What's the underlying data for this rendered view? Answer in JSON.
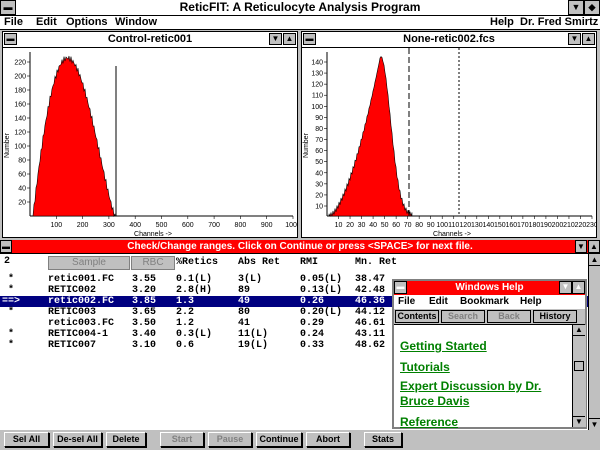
{
  "app": {
    "title": "ReticFIT: A Reticulocyte Analysis Program"
  },
  "menubar": {
    "file": "File",
    "edit": "Edit",
    "options": "Options",
    "window": "Window",
    "help": "Help",
    "user": "Dr. Fred Smirtz"
  },
  "window_left": {
    "title": "Control-retic001",
    "ylabel": "Number",
    "xlabel": "Channels ->",
    "xticks": [
      "100",
      "200",
      "300",
      "400",
      "500",
      "600",
      "700",
      "800",
      "900",
      "1000"
    ],
    "yticks": [
      "220",
      "200",
      "180",
      "160",
      "140",
      "120",
      "100",
      "80",
      "60",
      "40",
      "20"
    ]
  },
  "window_right": {
    "title": "None-retic002.fcs",
    "ylabel": "Number",
    "xlabel": "Channels ->",
    "xticks": [
      "10",
      "20",
      "30",
      "40",
      "50",
      "60",
      "70",
      "80",
      "90",
      "100",
      "110",
      "120",
      "130",
      "140",
      "150",
      "160",
      "170",
      "180",
      "190",
      "200",
      "210",
      "220",
      "230"
    ],
    "yticks": [
      "140",
      "130",
      "120",
      "110",
      "100",
      "90",
      "80",
      "70",
      "60",
      "50",
      "40",
      "30",
      "20",
      "10"
    ]
  },
  "status_message": "Check/Change ranges.  Click on Continue or press <SPACE> for next file.",
  "list": {
    "count": "2",
    "sample_btn": "Sample",
    "rbc_btn": "RBC",
    "headers": {
      "retics": "%Retics",
      "absret": "Abs Ret",
      "rmi": "RMI",
      "mnret": "Mn. Ret"
    },
    "rows": [
      {
        "marker": " *",
        "file": "retic001.FC",
        "rbc": "3.55",
        "retics": "0.1(L)",
        "absret": "3(L)",
        "rmi": "0.05(L)",
        "mnret": "38.47"
      },
      {
        "marker": " *",
        "file": "RETIC002",
        "rbc": "3.20",
        "retics": "2.8(H)",
        "absret": "89",
        "rmi": "0.13(L)",
        "mnret": "42.48"
      },
      {
        "marker": "==>",
        "file": "retic002.FC",
        "rbc": "3.85",
        "retics": "1.3",
        "absret": "49",
        "rmi": "0.26",
        "mnret": "46.36"
      },
      {
        "marker": " *",
        "file": "RETIC003",
        "rbc": "3.65",
        "retics": "2.2",
        "absret": "80",
        "rmi": "0.20(L)",
        "mnret": "44.12"
      },
      {
        "marker": "",
        "file": "retic003.FC",
        "rbc": "3.50",
        "retics": "1.2",
        "absret": "41",
        "rmi": "0.29",
        "mnret": "46.61"
      },
      {
        "marker": " *",
        "file": "RETIC004-1",
        "rbc": "3.40",
        "retics": "0.3(L)",
        "absret": "11(L)",
        "rmi": "0.24",
        "mnret": "43.11"
      },
      {
        "marker": " *",
        "file": "RETIC007",
        "rbc": "3.10",
        "retics": "0.6",
        "absret": "19(L)",
        "rmi": "0.33",
        "mnret": "48.62"
      }
    ]
  },
  "buttons": {
    "sel_all": "Sel All",
    "desel_all": "De-sel All",
    "delete": "Delete",
    "start": "Start",
    "pause": "Pause",
    "continue": "Continue",
    "abort": "Abort",
    "stats": "Stats"
  },
  "help_window": {
    "title": "Windows Help",
    "menu": {
      "file": "File",
      "edit": "Edit",
      "bookmark": "Bookmark",
      "help": "Help"
    },
    "toolbar": {
      "contents": "Contents",
      "search": "Search",
      "back": "Back",
      "history": "History"
    },
    "links": [
      "Getting Started",
      "Tutorials",
      "Expert Discussion by Dr.",
      "Bruce Davis",
      "Reference"
    ]
  },
  "colors": {
    "histogram": "#ff0000",
    "status_bg": "#ff0000",
    "link": "#008000",
    "selection": "#000080"
  }
}
